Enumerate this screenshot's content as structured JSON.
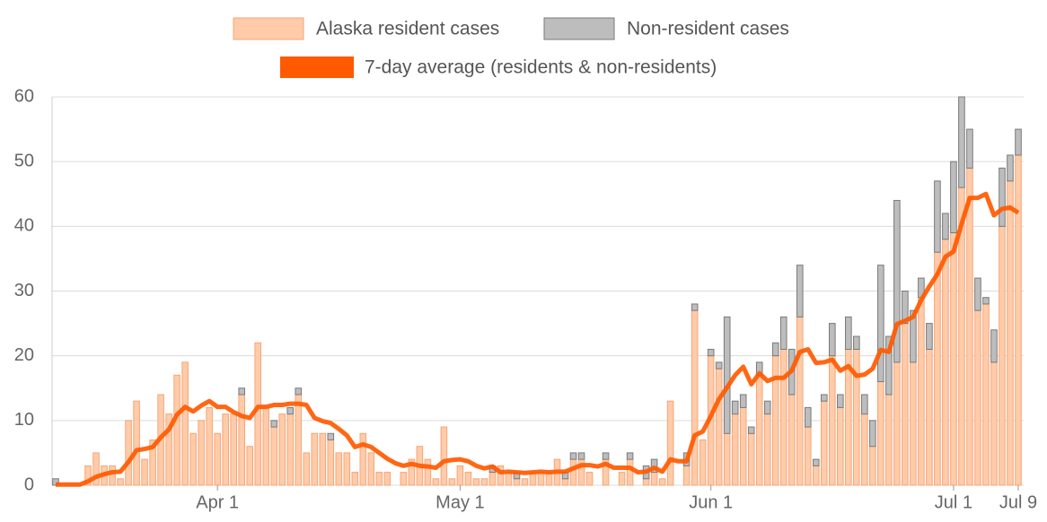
{
  "chart_data": {
    "type": "bar",
    "stacked": true,
    "categories": [
      null,
      null,
      null,
      null,
      null,
      null,
      null,
      null,
      null,
      null,
      null,
      null,
      null,
      null,
      null,
      null,
      null,
      null,
      null,
      null,
      "Apr 1",
      null,
      null,
      null,
      null,
      null,
      null,
      null,
      null,
      null,
      null,
      null,
      null,
      null,
      null,
      null,
      null,
      null,
      null,
      null,
      null,
      null,
      null,
      null,
      null,
      null,
      null,
      null,
      null,
      null,
      "May 1",
      null,
      null,
      null,
      null,
      null,
      null,
      null,
      null,
      null,
      null,
      null,
      null,
      null,
      null,
      null,
      null,
      null,
      null,
      null,
      null,
      null,
      null,
      null,
      null,
      null,
      null,
      null,
      null,
      null,
      null,
      "Jun 1",
      null,
      null,
      null,
      null,
      null,
      null,
      null,
      null,
      null,
      null,
      null,
      null,
      null,
      null,
      null,
      null,
      null,
      null,
      null,
      null,
      null,
      null,
      null,
      null,
      null,
      null,
      null,
      null,
      null,
      "Jul 1",
      null,
      null,
      null,
      null,
      null,
      null,
      null,
      "Jul 9"
    ],
    "series": [
      {
        "name": "Alaska resident cases",
        "color": "#ffcba8",
        "stroke": "#f4a67a",
        "values": [
          0,
          0,
          0,
          0,
          3,
          5,
          3,
          3,
          1,
          10,
          13,
          4,
          7,
          14,
          11,
          17,
          19,
          8,
          10,
          12,
          8,
          11,
          11,
          14,
          6,
          22,
          12,
          9,
          11,
          11,
          14,
          5,
          8,
          8,
          7,
          5,
          5,
          2,
          8,
          5,
          2,
          2,
          0,
          2,
          4,
          6,
          4,
          1,
          9,
          1,
          3,
          2,
          1,
          1,
          2,
          3,
          2,
          1,
          1,
          2,
          2,
          2,
          4,
          1,
          4,
          4,
          2,
          0,
          4,
          0,
          2,
          4,
          0,
          1,
          2,
          1,
          13,
          0,
          3,
          27,
          7,
          20,
          18,
          8,
          11,
          12,
          8,
          17,
          11,
          20,
          21,
          14,
          26,
          9,
          3,
          13,
          20,
          12,
          21,
          21,
          11,
          6,
          16,
          14,
          19,
          25,
          19,
          29,
          21,
          36,
          38,
          39,
          46,
          49,
          27,
          28,
          19,
          40,
          47,
          51
        ]
      },
      {
        "name": "Non-resident cases",
        "color": "#bdbdbd",
        "stroke": "#7a7a7a",
        "values": [
          1,
          0,
          0,
          0,
          0,
          0,
          0,
          0,
          0,
          0,
          0,
          0,
          0,
          0,
          0,
          0,
          0,
          0,
          0,
          0,
          0,
          0,
          0,
          1,
          0,
          0,
          0,
          1,
          0,
          1,
          1,
          0,
          0,
          0,
          1,
          0,
          0,
          0,
          0,
          0,
          0,
          0,
          0,
          0,
          0,
          0,
          0,
          0,
          0,
          0,
          0,
          0,
          0,
          0,
          1,
          0,
          0,
          1,
          0,
          0,
          0,
          0,
          0,
          1,
          1,
          1,
          0,
          0,
          1,
          0,
          0,
          1,
          0,
          2,
          2,
          0,
          0,
          0,
          2,
          1,
          0,
          1,
          1,
          18,
          2,
          2,
          1,
          2,
          2,
          2,
          5,
          7,
          8,
          3,
          1,
          1,
          5,
          2,
          5,
          2,
          3,
          4,
          18,
          9,
          25,
          5,
          8,
          3,
          4,
          11,
          4,
          11,
          14,
          6,
          5,
          1,
          5,
          9,
          4,
          4
        ]
      },
      {
        "name": "7-day average (residents & non-residents)",
        "type": "line",
        "color": "#ff5a00",
        "values": [
          0.1,
          0.1,
          0.1,
          0.1,
          0.6,
          1.3,
          1.7,
          2.0,
          2.1,
          3.6,
          5.4,
          5.6,
          5.9,
          7.4,
          8.6,
          10.9,
          12.1,
          11.4,
          12.3,
          13.0,
          12.1,
          12.1,
          11.3,
          10.7,
          10.4,
          12.1,
          12.1,
          12.4,
          12.4,
          12.6,
          12.6,
          12.4,
          10.4,
          9.9,
          9.6,
          8.7,
          7.7,
          5.9,
          6.3,
          5.9,
          5.0,
          4.1,
          3.4,
          3.0,
          3.3,
          3.0,
          2.9,
          2.7,
          3.7,
          3.9,
          4.0,
          3.7,
          3.0,
          2.6,
          2.9,
          2.0,
          2.1,
          2.0,
          1.9,
          2.0,
          2.1,
          2.0,
          2.1,
          2.1,
          2.6,
          3.1,
          3.1,
          2.9,
          3.3,
          2.7,
          2.7,
          2.7,
          2.0,
          2.1,
          2.7,
          2.1,
          4.0,
          3.7,
          3.7,
          7.7,
          8.3,
          10.7,
          13.3,
          15.1,
          17.0,
          18.3,
          15.6,
          17.3,
          16.1,
          16.6,
          16.6,
          17.7,
          20.6,
          21.0,
          18.9,
          19.0,
          19.4,
          17.7,
          18.4,
          16.9,
          17.1,
          18.0,
          20.9,
          20.6,
          24.9,
          25.4,
          26.0,
          28.6,
          30.7,
          32.6,
          35.3,
          36.1,
          40.4,
          44.4,
          44.4,
          45.0,
          41.7,
          42.7,
          42.9,
          42.1
        ]
      }
    ],
    "ylim": [
      0,
      60
    ],
    "yticks": [
      0,
      10,
      20,
      30,
      40,
      50,
      60
    ],
    "grid": true
  }
}
